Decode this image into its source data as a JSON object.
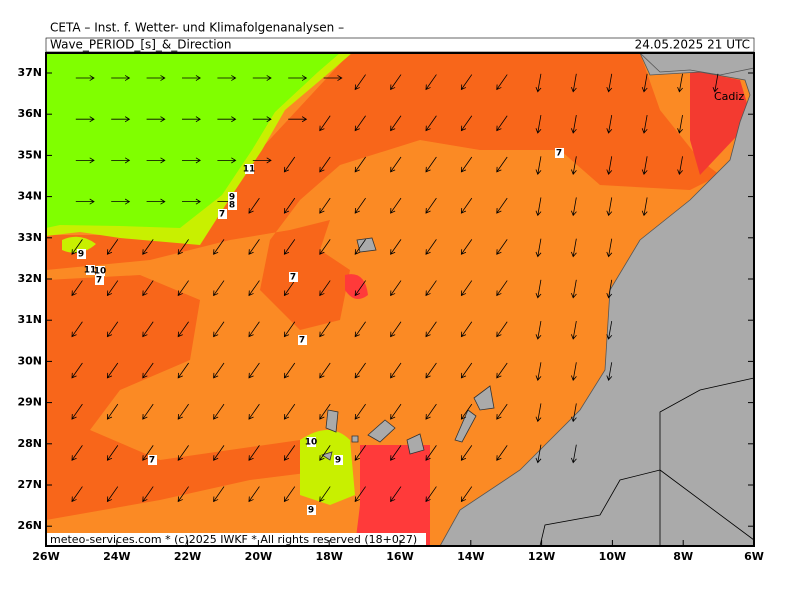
{
  "header": {
    "institute": "CETA – Inst. f. Wetter- und Klimafolgenanalysen –",
    "parameter": "Wave_PERIOD_[s]_&_Direction",
    "valid_time": "24.05.2025 21 UTC"
  },
  "map": {
    "lat_labels": [
      "37N",
      "36N",
      "35N",
      "34N",
      "33N",
      "32N",
      "31N",
      "30N",
      "29N",
      "28N",
      "27N",
      "26N"
    ],
    "lon_labels": [
      "26W",
      "24W",
      "22W",
      "20W",
      "18W",
      "16W",
      "14W",
      "12W",
      "10W",
      "8W",
      "6W"
    ],
    "place": "Cadiz",
    "contour_labels": [
      11,
      9,
      8,
      7,
      9,
      11,
      10,
      7,
      7,
      7,
      7,
      10,
      9,
      9,
      7
    ]
  },
  "footer": "meteo-services.com * (c)2025 IWKF * All rights reserved (18+027)"
}
